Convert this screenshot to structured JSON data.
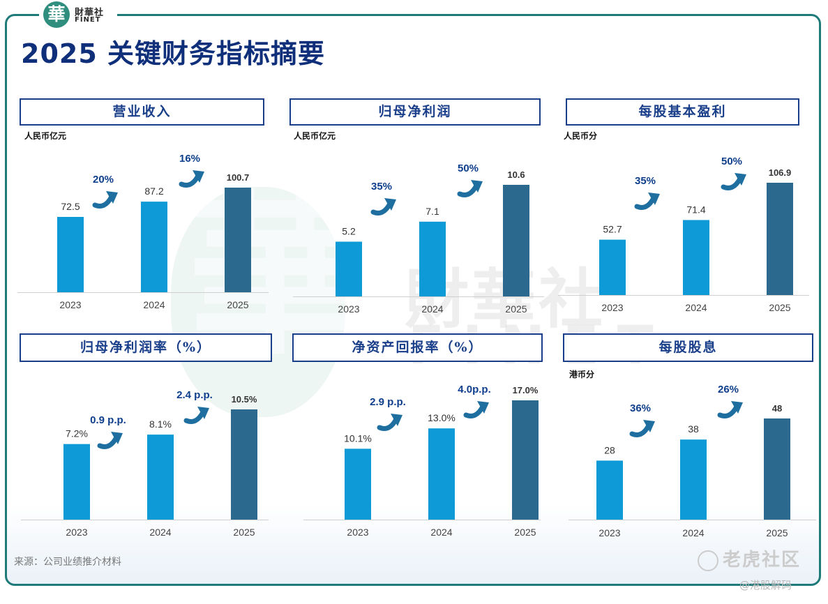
{
  "brand": {
    "seal": "華",
    "name_cn": "財華社",
    "name_en": "FINET"
  },
  "page": {
    "title": "2025 关键财务指标摘要"
  },
  "watermark": {
    "glyph": "華",
    "cn": "財華社",
    "en": "FINET"
  },
  "colors": {
    "bar_prior": "#0e9ad6",
    "bar_latest": "#2b6a8e",
    "arrow": "#1e6fa0",
    "growth_text": "#0f3f8c",
    "header_border": "#1a3f8a"
  },
  "footer": {
    "source": "来源：公司业绩推介材料",
    "credit_site": "老虎社区",
    "credit_handle": "@港股解码"
  },
  "chart_data": [
    {
      "type": "bar",
      "title": "营业收入",
      "unit": "人民币亿元",
      "categories": [
        "2023",
        "2024",
        "2025"
      ],
      "values": [
        72.5,
        87.2,
        100.7
      ],
      "value_labels": [
        "72.5",
        "87.2",
        "100.7"
      ],
      "growth": [
        "20%",
        "16%"
      ]
    },
    {
      "type": "bar",
      "title": "归母净利润",
      "unit": "人民币亿元",
      "categories": [
        "2023",
        "2024",
        "2025"
      ],
      "values": [
        5.2,
        7.1,
        10.6
      ],
      "value_labels": [
        "5.2",
        "7.1",
        "10.6"
      ],
      "growth": [
        "35%",
        "50%"
      ]
    },
    {
      "type": "bar",
      "title": "每股基本盈利",
      "unit": "人民币分",
      "categories": [
        "2023",
        "2024",
        "2025"
      ],
      "values": [
        52.7,
        71.4,
        106.9
      ],
      "value_labels": [
        "52.7",
        "71.4",
        "106.9"
      ],
      "growth": [
        "35%",
        "50%"
      ]
    },
    {
      "type": "bar",
      "title": "归母净利润率（%）",
      "unit": "",
      "categories": [
        "2023",
        "2024",
        "2025"
      ],
      "values": [
        7.2,
        8.1,
        10.5
      ],
      "value_labels": [
        "7.2%",
        "8.1%",
        "10.5%"
      ],
      "growth": [
        "0.9 p.p.",
        "2.4 p.p."
      ]
    },
    {
      "type": "bar",
      "title": "净资产回报率（%）",
      "unit": "",
      "categories": [
        "2023",
        "2024",
        "2025"
      ],
      "values": [
        10.1,
        13.0,
        17.0
      ],
      "value_labels": [
        "10.1%",
        "13.0%",
        "17.0%"
      ],
      "growth": [
        "2.9 p.p.",
        "4.0p.p."
      ]
    },
    {
      "type": "bar",
      "title": "每股股息",
      "unit": "港币分",
      "categories": [
        "2023",
        "2024",
        "2025"
      ],
      "values": [
        28,
        38,
        48
      ],
      "value_labels": [
        "28",
        "38",
        "48"
      ],
      "growth": [
        "36%",
        "26%"
      ]
    }
  ]
}
